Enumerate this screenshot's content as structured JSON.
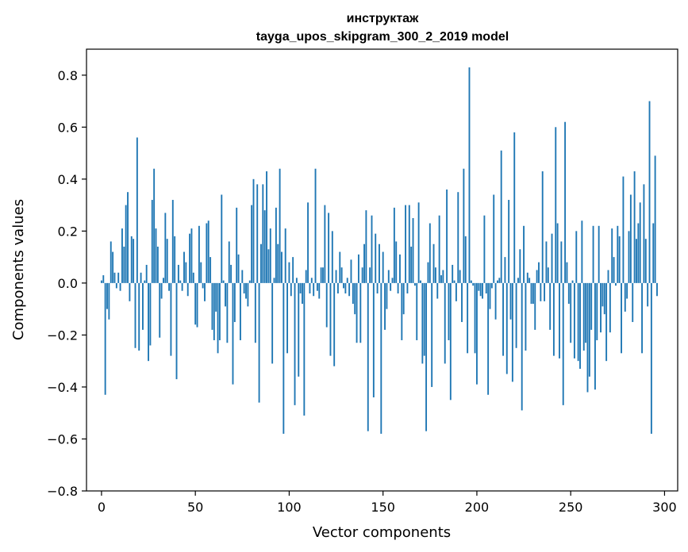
{
  "chart_data": {
    "type": "bar",
    "title": "инструктаж",
    "subtitle": "tayga_upos_skipgram_300_2_2019 model",
    "xlabel": "Vector components",
    "ylabel": "Components values",
    "xlim": [
      -8,
      307
    ],
    "ylim": [
      -0.8,
      0.9
    ],
    "xticks": [
      0,
      50,
      100,
      150,
      200,
      250,
      300
    ],
    "yticks": [
      -0.8,
      -0.6,
      -0.4,
      -0.2,
      0.0,
      0.2,
      0.4,
      0.6,
      0.8
    ],
    "ytick_labels": [
      "−0.8",
      "−0.6",
      "−0.4",
      "−0.2",
      "0.0",
      "0.2",
      "0.4",
      "0.6",
      "0.8"
    ],
    "grid": false,
    "bar_color": "#1f77b4",
    "series": [
      {
        "values": [
          0.01,
          0.03,
          -0.43,
          -0.1,
          -0.14,
          0.16,
          0.12,
          0.04,
          -0.02,
          0.04,
          -0.03,
          0.21,
          0.14,
          0.3,
          0.35,
          -0.07,
          0.18,
          0.17,
          -0.25,
          0.56,
          -0.26,
          0.04,
          -0.18,
          0.01,
          0.07,
          -0.3,
          -0.24,
          0.32,
          0.44,
          0.21,
          0.14,
          -0.21,
          -0.06,
          0.02,
          0.27,
          0.17,
          -0.03,
          -0.28,
          0.32,
          0.18,
          -0.37,
          0.07,
          0.01,
          -0.03,
          0.12,
          0.08,
          -0.05,
          0.19,
          0.21,
          0.04,
          -0.16,
          -0.17,
          0.22,
          0.08,
          -0.02,
          -0.07,
          0.23,
          0.24,
          0.1,
          -0.18,
          -0.22,
          -0.11,
          -0.27,
          -0.22,
          0.34,
          0.01,
          -0.09,
          -0.23,
          0.16,
          0.07,
          -0.39,
          -0.15,
          0.29,
          0.11,
          -0.22,
          0.05,
          -0.04,
          -0.06,
          -0.09,
          0.01,
          0.3,
          0.4,
          -0.23,
          0.38,
          -0.46,
          0.15,
          0.38,
          0.28,
          0.43,
          0.13,
          0.21,
          -0.31,
          0.02,
          0.29,
          0.15,
          0.44,
          0.12,
          -0.58,
          0.21,
          -0.27,
          0.08,
          -0.05,
          0.1,
          -0.47,
          0.02,
          -0.36,
          -0.04,
          -0.08,
          -0.51,
          0.05,
          0.31,
          -0.04,
          0.02,
          -0.05,
          0.44,
          -0.03,
          -0.06,
          0.06,
          0.06,
          0.3,
          -0.17,
          0.27,
          -0.28,
          0.2,
          -0.32,
          0.05,
          -0.04,
          0.12,
          0.06,
          -0.02,
          -0.04,
          0.02,
          -0.05,
          0.09,
          -0.08,
          -0.12,
          -0.23,
          0.11,
          -0.23,
          0.06,
          0.15,
          0.28,
          -0.57,
          0.06,
          0.26,
          -0.44,
          0.19,
          -0.04,
          0.15,
          -0.58,
          0.12,
          -0.18,
          -0.1,
          0.05,
          -0.03,
          0.02,
          0.29,
          0.16,
          -0.04,
          0.11,
          -0.22,
          -0.12,
          0.3,
          -0.04,
          0.3,
          0.14,
          0.25,
          -0.01,
          -0.22,
          0.31,
          0.01,
          -0.31,
          -0.28,
          -0.57,
          0.08,
          0.23,
          -0.4,
          0.15,
          0.06,
          -0.06,
          0.26,
          0.03,
          0.05,
          -0.31,
          0.36,
          -0.22,
          -0.45,
          0.07,
          0.01,
          -0.07,
          0.35,
          0.05,
          -0.15,
          0.44,
          0.18,
          -0.27,
          0.83,
          0.01,
          -0.01,
          -0.27,
          -0.39,
          -0.03,
          -0.05,
          -0.06,
          0.26,
          -0.04,
          -0.43,
          -0.1,
          -0.02,
          0.34,
          -0.14,
          0.01,
          0.02,
          0.51,
          -0.28,
          0.1,
          -0.35,
          0.32,
          -0.14,
          -0.38,
          0.58,
          -0.25,
          0.02,
          0.13,
          -0.49,
          0.22,
          -0.26,
          0.04,
          0.02,
          -0.08,
          -0.08,
          -0.18,
          0.05,
          0.08,
          -0.07,
          0.43,
          -0.07,
          0.16,
          0.06,
          -0.18,
          0.19,
          -0.28,
          0.6,
          0.23,
          -0.29,
          0.16,
          -0.47,
          0.62,
          0.08,
          -0.08,
          -0.23,
          0.01,
          -0.29,
          0.2,
          -0.3,
          -0.33,
          0.24,
          -0.26,
          -0.23,
          -0.42,
          -0.36,
          -0.18,
          0.22,
          -0.41,
          -0.22,
          0.22,
          -0.19,
          -0.09,
          -0.12,
          -0.3,
          0.05,
          -0.19,
          0.21,
          0.1,
          -0.01,
          0.22,
          0.18,
          -0.27,
          0.41,
          -0.11,
          -0.06,
          0.2,
          0.34,
          -0.15,
          0.43,
          0.17,
          0.23,
          0.31,
          -0.27,
          0.38,
          0.17,
          -0.09,
          0.7,
          -0.58,
          0.23,
          0.49,
          -0.05
        ]
      }
    ]
  }
}
